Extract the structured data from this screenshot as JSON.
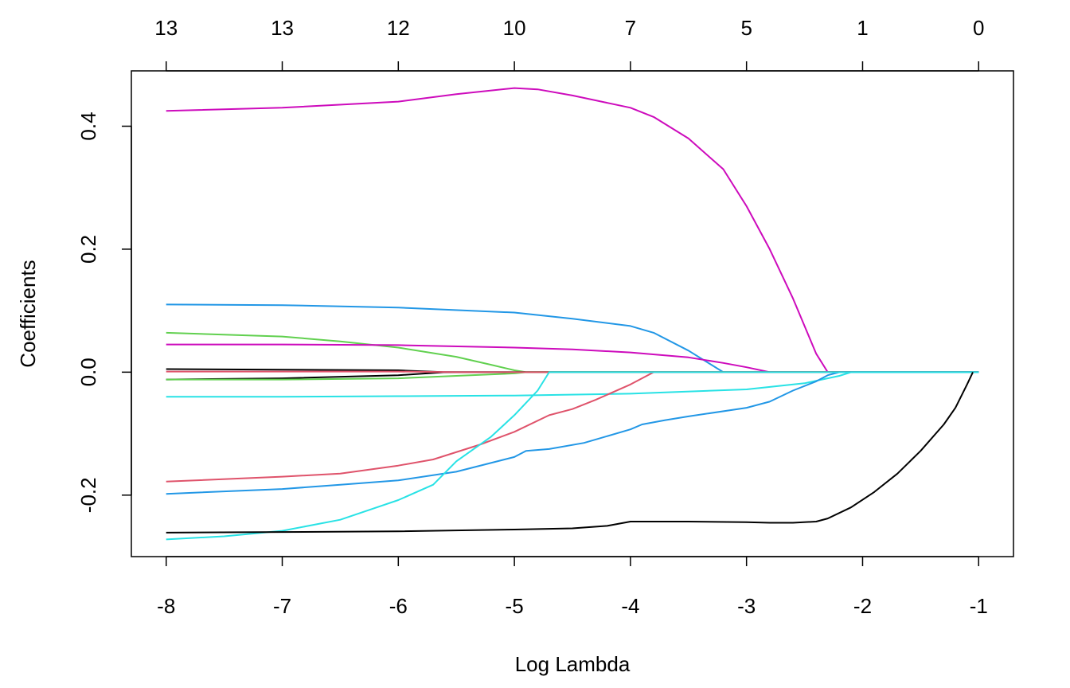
{
  "chart_data": {
    "type": "line",
    "title": "",
    "xlabel": "Log Lambda",
    "ylabel": "Coefficients",
    "xlim": [
      -8.3,
      -0.7
    ],
    "ylim": [
      -0.3,
      0.49
    ],
    "x_ticks": [
      -8,
      -7,
      -6,
      -5,
      -4,
      -3,
      -2,
      -1
    ],
    "x_tick_labels": [
      "-8",
      "-7",
      "-6",
      "-5",
      "-4",
      "-3",
      "-2",
      "-1"
    ],
    "y_ticks": [
      -0.2,
      0.0,
      0.2,
      0.4
    ],
    "y_tick_labels": [
      "-0.2",
      "0.0",
      "0.2",
      "0.4"
    ],
    "top_ticks": [
      -8,
      -7,
      -6,
      -5,
      -4,
      -3,
      -2,
      -1
    ],
    "top_tick_labels": [
      "13",
      "13",
      "12",
      "10",
      "7",
      "5",
      "1",
      "0"
    ],
    "grid": false,
    "legend": "none",
    "series": [
      {
        "color": "#CD0BBC",
        "points": [
          [
            -8,
            0.425
          ],
          [
            -7,
            0.43
          ],
          [
            -6,
            0.44
          ],
          [
            -5.5,
            0.452
          ],
          [
            -5,
            0.462
          ],
          [
            -4.8,
            0.46
          ],
          [
            -4.5,
            0.45
          ],
          [
            -4,
            0.43
          ],
          [
            -3.8,
            0.415
          ],
          [
            -3.5,
            0.38
          ],
          [
            -3.2,
            0.33
          ],
          [
            -3,
            0.27
          ],
          [
            -2.8,
            0.2
          ],
          [
            -2.6,
            0.12
          ],
          [
            -2.4,
            0.03
          ],
          [
            -2.3,
            0.0
          ],
          [
            -1,
            0.0
          ]
        ]
      },
      {
        "color": "#2297E6",
        "points": [
          [
            -8,
            0.11
          ],
          [
            -7,
            0.109
          ],
          [
            -6,
            0.105
          ],
          [
            -5,
            0.097
          ],
          [
            -4.5,
            0.087
          ],
          [
            -4,
            0.075
          ],
          [
            -3.8,
            0.064
          ],
          [
            -3.5,
            0.035
          ],
          [
            -3.2,
            0.0
          ],
          [
            -1,
            0.0
          ]
        ]
      },
      {
        "color": "#61D04F",
        "points": [
          [
            -8,
            0.064
          ],
          [
            -7,
            0.058
          ],
          [
            -6.5,
            0.05
          ],
          [
            -6,
            0.04
          ],
          [
            -5.5,
            0.025
          ],
          [
            -5.2,
            0.012
          ],
          [
            -5,
            0.003
          ],
          [
            -4.9,
            0.0
          ],
          [
            -1,
            0.0
          ]
        ]
      },
      {
        "color": "#CD0BBC",
        "points": [
          [
            -8,
            0.045
          ],
          [
            -7,
            0.045
          ],
          [
            -6,
            0.044
          ],
          [
            -5,
            0.04
          ],
          [
            -4.5,
            0.037
          ],
          [
            -4,
            0.032
          ],
          [
            -3.5,
            0.024
          ],
          [
            -3.2,
            0.015
          ],
          [
            -3,
            0.008
          ],
          [
            -2.8,
            0.0
          ],
          [
            -1,
            0.0
          ]
        ]
      },
      {
        "color": "#000000",
        "points": [
          [
            -8,
            0.005
          ],
          [
            -7,
            0.004
          ],
          [
            -6,
            0.003
          ],
          [
            -5.6,
            0.0
          ],
          [
            -1,
            0.0
          ]
        ]
      },
      {
        "color": "#000000",
        "points": [
          [
            -8,
            -0.012
          ],
          [
            -7,
            -0.01
          ],
          [
            -6,
            -0.005
          ],
          [
            -5.6,
            0.0
          ],
          [
            -1,
            0.0
          ]
        ]
      },
      {
        "color": "#61D04F",
        "points": [
          [
            -8,
            -0.012
          ],
          [
            -7,
            -0.012
          ],
          [
            -6,
            -0.01
          ],
          [
            -5.5,
            -0.006
          ],
          [
            -5,
            -0.002
          ],
          [
            -4.9,
            0.0
          ],
          [
            -1,
            0.0
          ]
        ]
      },
      {
        "color": "#DF536B",
        "points": [
          [
            -8,
            0.001
          ],
          [
            -7,
            0.001
          ],
          [
            -6,
            0.001
          ],
          [
            -5.5,
            0.0
          ],
          [
            -1,
            0.0
          ]
        ]
      },
      {
        "color": "#28E2E5",
        "points": [
          [
            -8,
            -0.04
          ],
          [
            -7,
            -0.04
          ],
          [
            -6,
            -0.039
          ],
          [
            -5,
            -0.038
          ],
          [
            -4,
            -0.035
          ],
          [
            -3,
            -0.028
          ],
          [
            -2.5,
            -0.018
          ],
          [
            -2.2,
            -0.006
          ],
          [
            -2.1,
            0.0
          ],
          [
            -1,
            0.0
          ]
        ]
      },
      {
        "color": "#DF536B",
        "points": [
          [
            -8,
            -0.178
          ],
          [
            -7,
            -0.17
          ],
          [
            -6.5,
            -0.165
          ],
          [
            -6,
            -0.152
          ],
          [
            -5.7,
            -0.142
          ],
          [
            -5.3,
            -0.118
          ],
          [
            -5,
            -0.097
          ],
          [
            -4.7,
            -0.07
          ],
          [
            -4.5,
            -0.06
          ],
          [
            -4.3,
            -0.045
          ],
          [
            -4,
            -0.02
          ],
          [
            -3.8,
            0.0
          ],
          [
            -1,
            0.0
          ]
        ]
      },
      {
        "color": "#2297E6",
        "points": [
          [
            -8,
            -0.198
          ],
          [
            -7,
            -0.19
          ],
          [
            -6.5,
            -0.183
          ],
          [
            -6,
            -0.176
          ],
          [
            -5.5,
            -0.162
          ],
          [
            -5,
            -0.138
          ],
          [
            -4.9,
            -0.128
          ],
          [
            -4.7,
            -0.125
          ],
          [
            -4.4,
            -0.115
          ],
          [
            -4,
            -0.093
          ],
          [
            -3.9,
            -0.085
          ],
          [
            -3.7,
            -0.078
          ],
          [
            -3.5,
            -0.072
          ],
          [
            -3,
            -0.058
          ],
          [
            -2.8,
            -0.048
          ],
          [
            -2.6,
            -0.03
          ],
          [
            -2.4,
            -0.015
          ],
          [
            -2.3,
            -0.005
          ],
          [
            -2.2,
            0.0
          ],
          [
            -1,
            0.0
          ]
        ]
      },
      {
        "color": "#28E2E5",
        "points": [
          [
            -8,
            -0.272
          ],
          [
            -7.5,
            -0.267
          ],
          [
            -7,
            -0.258
          ],
          [
            -6.5,
            -0.24
          ],
          [
            -6,
            -0.208
          ],
          [
            -5.7,
            -0.183
          ],
          [
            -5.5,
            -0.145
          ],
          [
            -5.2,
            -0.105
          ],
          [
            -5,
            -0.07
          ],
          [
            -4.8,
            -0.03
          ],
          [
            -4.7,
            0.0
          ],
          [
            -1,
            0.0
          ]
        ]
      },
      {
        "color": "#000000",
        "points": [
          [
            -8,
            -0.261
          ],
          [
            -7,
            -0.26
          ],
          [
            -6,
            -0.259
          ],
          [
            -5,
            -0.256
          ],
          [
            -4.5,
            -0.254
          ],
          [
            -4.2,
            -0.25
          ],
          [
            -4,
            -0.243
          ],
          [
            -3.5,
            -0.243
          ],
          [
            -3,
            -0.244
          ],
          [
            -2.8,
            -0.245
          ],
          [
            -2.6,
            -0.245
          ],
          [
            -2.4,
            -0.243
          ],
          [
            -2.3,
            -0.238
          ],
          [
            -2.1,
            -0.22
          ],
          [
            -1.9,
            -0.195
          ],
          [
            -1.7,
            -0.165
          ],
          [
            -1.5,
            -0.128
          ],
          [
            -1.3,
            -0.085
          ],
          [
            -1.2,
            -0.058
          ],
          [
            -1.1,
            -0.02
          ],
          [
            -1.05,
            0.0
          ]
        ]
      }
    ]
  }
}
